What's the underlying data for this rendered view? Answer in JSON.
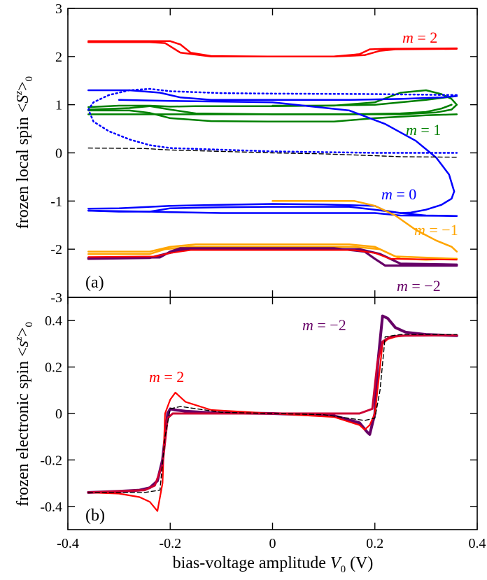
{
  "chart_data": [
    {
      "panel": "(a)",
      "type": "line",
      "ylabel": "frozen local spin <S^z>_0",
      "ylabel_parts": {
        "pre": "frozen local spin <",
        "var": "S",
        "sup": "z",
        "post": ">",
        "sub": "0"
      },
      "ylim": [
        -3,
        3
      ],
      "yticks": [
        3,
        2,
        1,
        0,
        -1,
        -2,
        -3
      ],
      "xlim": [
        -0.4,
        0.4
      ],
      "annotations": [
        {
          "text_pre": "m",
          "text_post": " = 2",
          "color": "#ff0000"
        },
        {
          "text_pre": "m",
          "text_post": " = 1",
          "color": "#008000"
        },
        {
          "text_pre": "m",
          "text_post": " = 0",
          "color": "#0000ff"
        },
        {
          "text_pre": "m",
          "text_post": " = −1",
          "color": "#ffa500"
        },
        {
          "text_pre": "m",
          "text_post": " = −2",
          "color": "#660066"
        }
      ],
      "series": [
        {
          "name": "m=2 lower",
          "color": "#ff0000",
          "width": 2.5,
          "x": [
            -0.36,
            -0.24,
            -0.21,
            -0.18,
            -0.12,
            0.0,
            0.12,
            0.18,
            0.21,
            0.24,
            0.36
          ],
          "y": [
            2.3,
            2.3,
            2.28,
            2.08,
            2.0,
            2.0,
            2.0,
            2.03,
            2.12,
            2.15,
            2.16
          ]
        },
        {
          "name": "m=2 upper",
          "color": "#ff0000",
          "width": 2.5,
          "x": [
            -0.36,
            -0.2,
            -0.18,
            -0.16,
            -0.12,
            0.0,
            0.12,
            0.17,
            0.19,
            0.22,
            0.36
          ],
          "y": [
            2.32,
            2.32,
            2.25,
            2.08,
            2.01,
            2.0,
            2.0,
            2.05,
            2.15,
            2.16,
            2.17
          ]
        },
        {
          "name": "m=1 a",
          "color": "#008000",
          "width": 2.5,
          "x": [
            -0.36,
            -0.3,
            -0.24,
            -0.2,
            -0.15,
            -0.1,
            0.0,
            0.1,
            0.2,
            0.3,
            0.36
          ],
          "y": [
            0.95,
            0.98,
            0.98,
            0.96,
            0.97,
            0.97,
            0.97,
            0.98,
            1.0,
            1.1,
            1.18
          ]
        },
        {
          "name": "m=1 b",
          "color": "#008000",
          "width": 2.5,
          "x": [
            -0.36,
            -0.28,
            -0.24,
            -0.2,
            -0.15,
            0.0,
            0.15,
            0.25,
            0.3,
            0.33,
            0.35
          ],
          "y": [
            0.9,
            0.93,
            0.97,
            0.9,
            0.82,
            0.8,
            0.8,
            0.82,
            0.85,
            0.92,
            1.0
          ]
        },
        {
          "name": "m=1 c",
          "color": "#008000",
          "width": 2.5,
          "x": [
            -0.36,
            -0.28,
            -0.24,
            -0.2,
            -0.12,
            0.0,
            0.12,
            0.2,
            0.3,
            0.36
          ],
          "y": [
            0.88,
            0.88,
            0.83,
            0.72,
            0.66,
            0.65,
            0.65,
            0.72,
            0.78,
            0.8
          ]
        },
        {
          "name": "m=1 d",
          "color": "#008000",
          "width": 2.5,
          "x": [
            0.0,
            0.12,
            0.2,
            0.25,
            0.3,
            0.33,
            0.35,
            0.36,
            0.35,
            0.32,
            0.25,
            0.2,
            0.1,
            0.0,
            -0.2,
            -0.36
          ],
          "y": [
            0.98,
            0.98,
            1.05,
            1.25,
            1.3,
            1.22,
            1.12,
            1.0,
            0.9,
            0.84,
            0.8,
            0.8,
            0.8,
            0.8,
            0.8,
            0.8
          ]
        },
        {
          "name": "m=0 dotted",
          "color": "#0000ff",
          "width": 2.5,
          "dash": "2,4",
          "x": [
            0.36,
            0.2,
            0.0,
            -0.1,
            -0.2,
            -0.24,
            -0.28,
            -0.32,
            -0.35,
            -0.36,
            -0.35,
            -0.32,
            -0.28,
            -0.24,
            -0.2,
            0.0,
            0.2,
            0.36
          ],
          "y": [
            1.2,
            1.22,
            1.23,
            1.24,
            1.28,
            1.33,
            1.3,
            1.2,
            1.05,
            0.9,
            0.65,
            0.45,
            0.28,
            0.16,
            0.1,
            0.03,
            0.0,
            0.0
          ]
        },
        {
          "name": "m=0 upper",
          "color": "#0000ff",
          "width": 2.5,
          "x": [
            -0.36,
            -0.28,
            -0.22,
            -0.18,
            -0.12,
            0.0,
            0.15,
            0.25,
            0.33,
            0.36
          ],
          "y": [
            1.3,
            1.3,
            1.25,
            1.15,
            1.1,
            1.1,
            1.1,
            1.12,
            1.15,
            1.18
          ]
        },
        {
          "name": "m=0 right",
          "color": "#0000ff",
          "width": 2.5,
          "x": [
            -0.3,
            -0.2,
            0.0,
            0.15,
            0.22,
            0.28,
            0.32,
            0.345,
            0.355,
            0.35,
            0.33,
            0.3,
            0.27,
            0.25,
            0.22,
            0.2,
            0.1,
            0.0,
            -0.1,
            -0.2,
            -0.3,
            -0.36
          ],
          "y": [
            1.1,
            1.08,
            1.05,
            0.88,
            0.6,
            0.25,
            -0.1,
            -0.45,
            -0.8,
            -0.95,
            -1.08,
            -1.18,
            -1.24,
            -1.25,
            -1.2,
            -1.1,
            -1.07,
            -1.06,
            -1.08,
            -1.1,
            -1.15,
            -1.16
          ]
        },
        {
          "name": "m=0 lower",
          "color": "#0000ff",
          "width": 2.5,
          "x": [
            -0.36,
            -0.3,
            -0.24,
            -0.2,
            -0.1,
            0.0,
            0.15,
            0.2,
            0.25,
            0.3,
            0.36
          ],
          "y": [
            -1.2,
            -1.22,
            -1.22,
            -1.15,
            -1.13,
            -1.12,
            -1.12,
            -1.18,
            -1.25,
            -1.3,
            -1.31
          ]
        },
        {
          "name": "m=0 bottom",
          "color": "#0000ff",
          "width": 2.5,
          "x": [
            -0.36,
            -0.24,
            -0.2,
            -0.1,
            0.0,
            0.1,
            0.2,
            0.25,
            0.36
          ],
          "y": [
            -1.2,
            -1.22,
            -1.23,
            -1.25,
            -1.25,
            -1.25,
            -1.25,
            -1.3,
            -1.31
          ]
        },
        {
          "name": "m=-1 a",
          "color": "#ffa500",
          "width": 2.5,
          "x": [
            0.0,
            0.16,
            0.2,
            0.24,
            0.28,
            0.32,
            0.35,
            0.36
          ],
          "y": [
            -1.0,
            -1.0,
            -1.1,
            -1.3,
            -1.6,
            -1.82,
            -1.95,
            -2.05
          ]
        },
        {
          "name": "m=-1 b",
          "color": "#ffa500",
          "width": 2.5,
          "x": [
            -0.36,
            -0.24,
            -0.2,
            -0.15,
            0.0,
            0.15,
            0.2,
            0.24,
            0.36
          ],
          "y": [
            -2.05,
            -2.05,
            -1.95,
            -1.9,
            -1.9,
            -1.9,
            -1.95,
            -2.15,
            -2.2
          ]
        },
        {
          "name": "m=-1 c",
          "color": "#ffa500",
          "width": 2.5,
          "x": [
            -0.36,
            -0.24,
            -0.21,
            -0.16,
            0.0,
            0.16,
            0.21,
            0.25,
            0.3,
            0.36
          ],
          "y": [
            -2.1,
            -2.1,
            -2.0,
            -1.95,
            -1.95,
            -1.95,
            -2.0,
            -2.2,
            -2.22,
            -2.2
          ]
        },
        {
          "name": "m=-2 a",
          "color": "#660066",
          "width": 3.2,
          "x": [
            -0.36,
            -0.24,
            -0.21,
            -0.17,
            0.0,
            0.17,
            0.21,
            0.25,
            0.36
          ],
          "y": [
            -2.2,
            -2.18,
            -2.1,
            -2.0,
            -2.0,
            -2.0,
            -2.1,
            -2.3,
            -2.32
          ]
        },
        {
          "name": "m=-2 b",
          "color": "#660066",
          "width": 3.2,
          "x": [
            -0.36,
            -0.22,
            -0.2,
            -0.18,
            -0.12,
            0.0,
            0.12,
            0.18,
            0.2,
            0.22,
            0.36
          ],
          "y": [
            -2.18,
            -2.17,
            -2.05,
            -1.98,
            -1.98,
            -1.98,
            -1.98,
            -2.05,
            -2.2,
            -2.34,
            -2.34
          ]
        },
        {
          "name": "m=-2 red",
          "color": "#ff0000",
          "width": 2.0,
          "x": [
            -0.36,
            -0.23,
            -0.2,
            -0.16,
            0.0,
            0.16,
            0.2,
            0.23,
            0.36
          ],
          "y": [
            -2.16,
            -2.15,
            -2.08,
            -2.02,
            -2.02,
            -2.02,
            -2.08,
            -2.2,
            -2.22
          ]
        },
        {
          "name": "black dashed",
          "color": "#000000",
          "width": 1.4,
          "dash": "6,4",
          "x": [
            -0.36,
            -0.25,
            -0.2,
            -0.1,
            0.0,
            0.1,
            0.2,
            0.25,
            0.36
          ],
          "y": [
            0.1,
            0.09,
            0.06,
            0.03,
            0.0,
            -0.02,
            -0.06,
            -0.08,
            -0.09
          ]
        }
      ]
    },
    {
      "panel": "(b)",
      "type": "line",
      "ylabel": "frozen electronic spin <s^z>_0",
      "ylabel_parts": {
        "pre": "frozen electronic spin <",
        "var": "s",
        "sup": "z",
        "post": ">",
        "sub": "0"
      },
      "xlabel_parts": {
        "pre": "bias-voltage amplitude  ",
        "var": "V",
        "sub": "0",
        "post": " (V)"
      },
      "xlim": [
        -0.4,
        0.4
      ],
      "ylim": [
        -0.5,
        0.5
      ],
      "xticks": [
        -0.4,
        -0.2,
        0,
        0.2,
        0.4
      ],
      "xtick_labels": [
        "-0.4",
        "-0.2",
        "0",
        "0.2",
        "0.4"
      ],
      "yticks": [
        0.4,
        0.2,
        0,
        -0.2,
        -0.4
      ],
      "ytick_labels": [
        "0.4",
        "0.2",
        "0",
        "-0.2",
        "-0.4"
      ],
      "annotations": [
        {
          "text_pre": "m",
          "text_post": " = −2",
          "color": "#660066"
        },
        {
          "text_pre": "m",
          "text_post": " = 2",
          "color": "#ff0000"
        }
      ],
      "series": [
        {
          "name": "m=-2 thick",
          "color": "#660066",
          "width": 4.0,
          "x": [
            -0.36,
            -0.3,
            -0.26,
            -0.24,
            -0.225,
            -0.215,
            -0.205,
            -0.2,
            -0.19,
            -0.17,
            -0.12,
            0.0,
            0.12,
            0.17,
            0.185,
            0.19,
            0.2,
            0.205,
            0.215,
            0.225,
            0.24,
            0.26,
            0.3,
            0.36
          ],
          "y": [
            -0.34,
            -0.335,
            -0.33,
            -0.32,
            -0.29,
            -0.2,
            0.0,
            0.02,
            0.015,
            0.01,
            0.003,
            0.0,
            -0.01,
            -0.04,
            -0.08,
            -0.09,
            0.0,
            0.2,
            0.42,
            0.41,
            0.37,
            0.35,
            0.34,
            0.335
          ]
        },
        {
          "name": "m=2 thin",
          "color": "#ff0000",
          "width": 2.2,
          "x": [
            -0.36,
            -0.3,
            -0.26,
            -0.24,
            -0.225,
            -0.215,
            -0.21,
            -0.2,
            -0.19,
            -0.17,
            -0.12,
            0.0,
            0.12,
            0.17,
            0.18,
            0.19,
            0.2,
            0.21,
            0.215,
            0.225,
            0.24,
            0.26,
            0.3,
            0.36
          ],
          "y": [
            -0.34,
            -0.345,
            -0.36,
            -0.38,
            -0.42,
            -0.3,
            0.0,
            0.06,
            0.09,
            0.05,
            0.015,
            0.0,
            -0.015,
            -0.05,
            -0.07,
            -0.05,
            0.0,
            0.2,
            0.3,
            0.32,
            0.33,
            0.335,
            0.336,
            0.336
          ]
        },
        {
          "name": "m=2 thick",
          "color": "#cc0033",
          "width": 3.0,
          "x": [
            -0.36,
            -0.25,
            -0.23,
            -0.215,
            -0.205,
            -0.195,
            -0.17,
            0.0,
            0.17,
            0.195,
            0.205,
            0.215,
            0.23,
            0.25,
            0.36
          ],
          "y": [
            -0.34,
            -0.33,
            -0.31,
            -0.22,
            -0.02,
            0.0,
            0.0,
            0.0,
            0.0,
            0.02,
            0.22,
            0.31,
            0.33,
            0.335,
            0.337
          ]
        },
        {
          "name": "black dashed",
          "color": "#000000",
          "width": 1.4,
          "dash": "6,4",
          "x": [
            -0.36,
            -0.25,
            -0.22,
            -0.21,
            -0.2,
            -0.18,
            -0.1,
            0.0,
            0.1,
            0.18,
            0.2,
            0.21,
            0.22,
            0.25,
            0.36
          ],
          "y": [
            -0.34,
            -0.34,
            -0.33,
            -0.1,
            0.02,
            0.03,
            0.005,
            0.0,
            -0.005,
            -0.03,
            -0.02,
            0.1,
            0.33,
            0.34,
            0.34
          ]
        }
      ]
    }
  ]
}
